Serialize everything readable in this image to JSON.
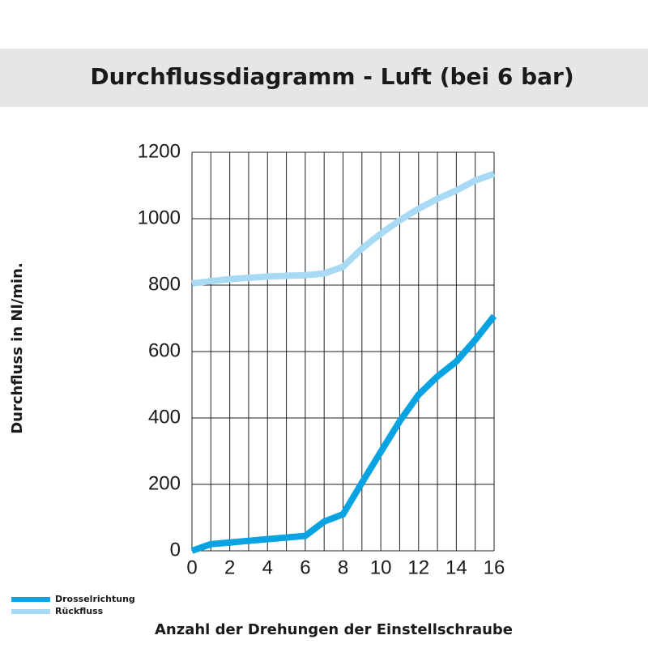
{
  "chart_data": {
    "type": "line",
    "title": "Durchflussdiagramm - Luft (bei 6 bar)",
    "x_label": "Anzahl der Drehungen der Einstellschraube",
    "y_label": "Durchfluss in Nl/min.",
    "x": [
      0,
      1,
      2,
      3,
      4,
      5,
      6,
      7,
      8,
      9,
      10,
      11,
      12,
      13,
      14,
      15,
      16
    ],
    "series": [
      {
        "name": "Drosselrichtung",
        "color": "#0aa3e2",
        "values": [
          0,
          20,
          25,
          30,
          35,
          40,
          45,
          88,
          110,
          205,
          298,
          390,
          470,
          525,
          570,
          635,
          707
        ]
      },
      {
        "name": "Rückfluss",
        "color": "#a8daf6",
        "values": [
          805,
          812,
          818,
          822,
          826,
          828,
          830,
          835,
          855,
          910,
          955,
          995,
          1030,
          1060,
          1085,
          1115,
          1135
        ]
      }
    ],
    "xlim": [
      0,
      16
    ],
    "xticks": [
      0,
      2,
      4,
      6,
      8,
      10,
      12,
      14,
      16
    ],
    "x_minor_gridlines": [
      1,
      3,
      5,
      7,
      9,
      11,
      13,
      15
    ],
    "ylim": [
      0,
      1200
    ],
    "yticks": [
      0,
      200,
      400,
      600,
      800,
      1000,
      1200
    ],
    "grid": true,
    "legend": "lower left"
  }
}
